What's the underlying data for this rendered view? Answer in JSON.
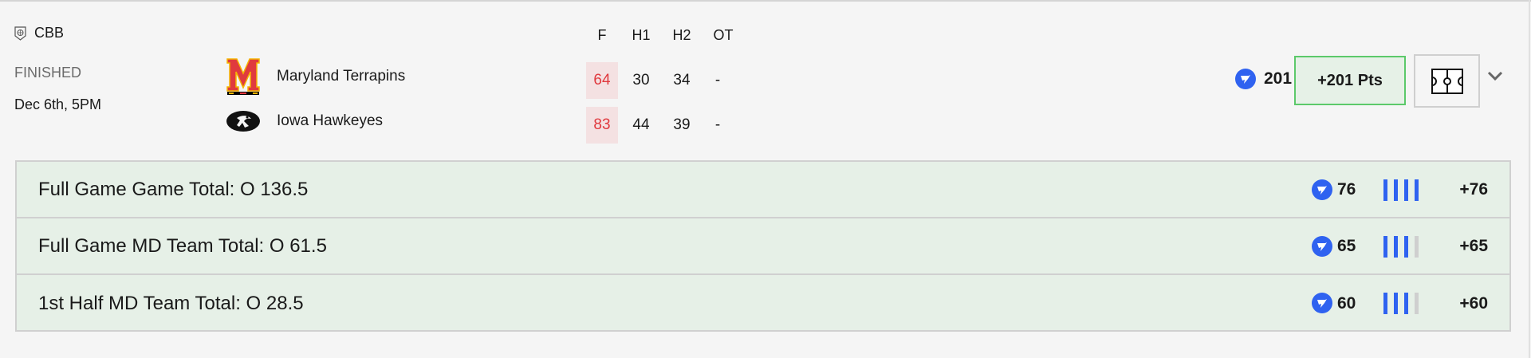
{
  "game": {
    "league": "CBB",
    "league_icon": "basketball-shield-icon",
    "status": "FINISHED",
    "date": "Dec 6th, 5PM",
    "columns": [
      "F",
      "H1",
      "H2",
      "OT"
    ],
    "teams": [
      {
        "name": "Maryland Terrapins",
        "logo": "maryland-m-logo",
        "scores": [
          "64",
          "30",
          "34",
          "-"
        ]
      },
      {
        "name": "Iowa Hawkeyes",
        "logo": "iowa-hawkeye-logo",
        "scores": [
          "83",
          "44",
          "39",
          "-"
        ]
      }
    ],
    "total_points": "201",
    "points_button": "+201 Pts",
    "final_highlight_color": "#e0393e"
  },
  "bets": [
    {
      "label": "Full Game Game Total: O 136.5",
      "score": "76",
      "strength": 4,
      "result": "+76"
    },
    {
      "label": "Full Game MD Team Total: O 61.5",
      "score": "65",
      "strength": 3,
      "result": "+65"
    },
    {
      "label": "1st Half MD Team Total: O 28.5",
      "score": "60",
      "strength": 3,
      "result": "+60"
    }
  ],
  "colors": {
    "accent": "#2f62f0",
    "win_bg": "#e6f0e7",
    "win_border": "#5cc96a"
  }
}
